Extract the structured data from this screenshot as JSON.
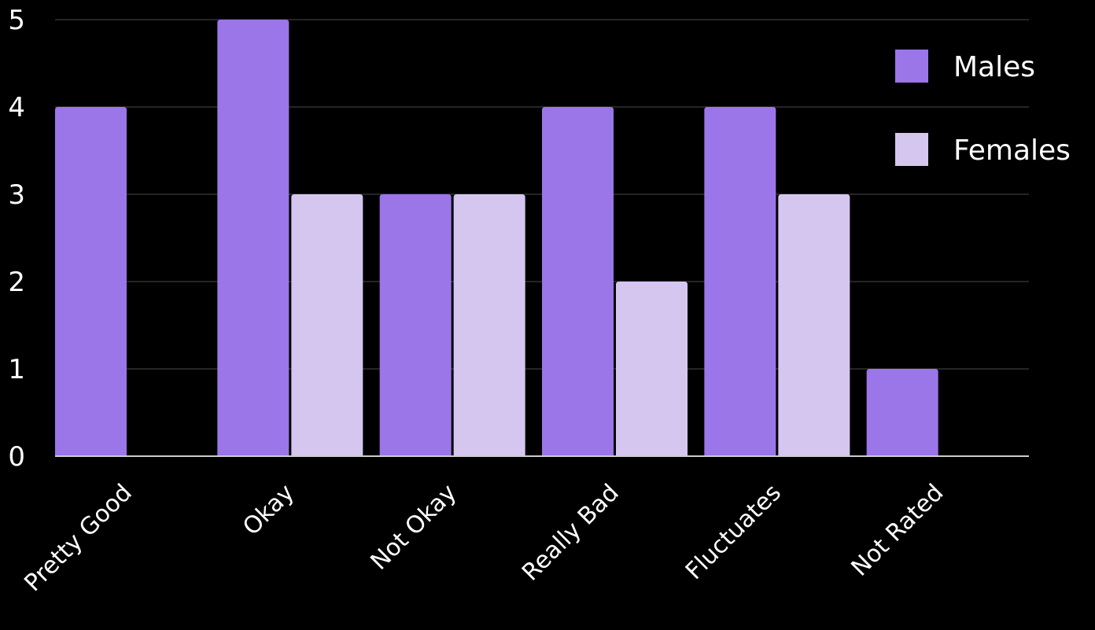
{
  "chart_data": {
    "type": "bar",
    "title": "",
    "xlabel": "",
    "ylabel": "",
    "categories": [
      "Pretty Good",
      "Okay",
      "Not Okay",
      "Really Bad",
      "Fluctuates",
      "Not Rated"
    ],
    "series": [
      {
        "name": "Males",
        "values": [
          4,
          5,
          3,
          4,
          4,
          1
        ],
        "color": "#9b76e8"
      },
      {
        "name": "Females",
        "values": [
          0,
          3,
          3,
          2,
          3,
          0
        ],
        "color": "#d5c6f0"
      }
    ],
    "ylim": [
      0,
      5
    ],
    "yticks": [
      "0",
      "1",
      "2",
      "3",
      "4",
      "5"
    ],
    "grid": true,
    "legend_position": "top-right",
    "background": "#000000",
    "text_color": "#ffffff",
    "grid_color": "#4a4a4a",
    "axis_color": "#cccccc"
  }
}
